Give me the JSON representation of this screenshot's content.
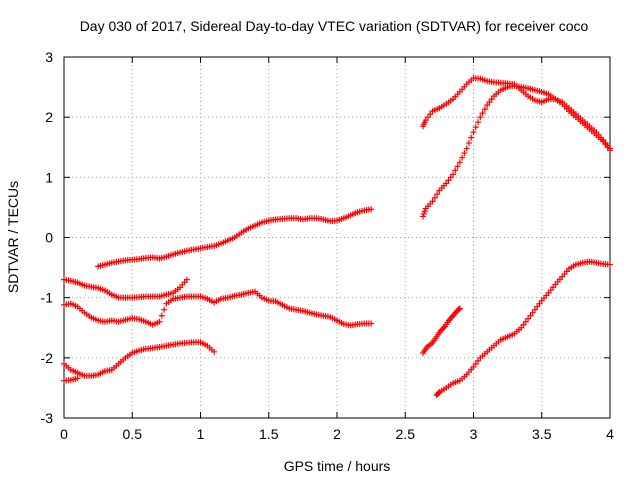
{
  "chart_data": {
    "type": "scatter",
    "title": "Day 030 of 2017, Sidereal Day-to-day VTEC variation (SDTVAR) for receiver coco",
    "xlabel": "GPS time / hours",
    "ylabel": "SDTVAR / TECUs",
    "xlim": [
      0,
      4
    ],
    "ylim": [
      -3,
      3
    ],
    "x_ticks": [
      0,
      0.5,
      1,
      1.5,
      2,
      2.5,
      3,
      3.5,
      4
    ],
    "x_tick_labels": [
      "0",
      "0.5",
      "1",
      "1.5",
      "2",
      "2.5",
      "3",
      "3.5",
      "4"
    ],
    "y_ticks": [
      -3,
      -2,
      -1,
      0,
      1,
      2,
      3
    ],
    "y_tick_labels": [
      "-3",
      "-2",
      "-1",
      "0",
      "1",
      "2",
      "3"
    ],
    "grid": true,
    "marker": "+",
    "series": [
      {
        "color": "#ff0000",
        "x": [
          0.25,
          0.3,
          0.35,
          0.4,
          0.45,
          0.5,
          0.55,
          0.6,
          0.65,
          0.7,
          0.75,
          0.8,
          0.85,
          0.9,
          0.95,
          1.0,
          1.05,
          1.1,
          1.15,
          1.2,
          1.25,
          1.3,
          1.35,
          1.4,
          1.45,
          1.5,
          1.55,
          1.6,
          1.65,
          1.7,
          1.75,
          1.8,
          1.85,
          1.9,
          1.95,
          2.0,
          2.05,
          2.1,
          2.15,
          2.2,
          2.25
        ],
        "y": [
          -0.48,
          -0.45,
          -0.42,
          -0.4,
          -0.38,
          -0.37,
          -0.36,
          -0.34,
          -0.33,
          -0.35,
          -0.32,
          -0.28,
          -0.25,
          -0.22,
          -0.2,
          -0.18,
          -0.16,
          -0.14,
          -0.1,
          -0.05,
          0.0,
          0.08,
          0.15,
          0.2,
          0.25,
          0.28,
          0.3,
          0.31,
          0.32,
          0.32,
          0.3,
          0.32,
          0.32,
          0.3,
          0.27,
          0.28,
          0.32,
          0.37,
          0.42,
          0.45,
          0.47
        ]
      },
      {
        "color": "#ff0000",
        "x": [
          0.0,
          0.05,
          0.1,
          0.15,
          0.2,
          0.25,
          0.3,
          0.35,
          0.4,
          0.45,
          0.5,
          0.55,
          0.6,
          0.65,
          0.7,
          0.75,
          0.8,
          0.85,
          0.9,
          0.95,
          1.0,
          1.05,
          1.1,
          1.15,
          1.2,
          1.25,
          1.3,
          1.35,
          1.4,
          1.45,
          1.5,
          1.55,
          1.6,
          1.65,
          1.7,
          1.75,
          1.8,
          1.85,
          1.9,
          1.95,
          2.0,
          2.05,
          2.1,
          2.15,
          2.2,
          2.25
        ],
        "y": [
          -1.12,
          -1.1,
          -1.15,
          -1.25,
          -1.33,
          -1.38,
          -1.4,
          -1.38,
          -1.4,
          -1.37,
          -1.34,
          -1.36,
          -1.4,
          -1.45,
          -1.4,
          -1.1,
          -1.02,
          -1.0,
          -0.98,
          -0.98,
          -0.98,
          -1.02,
          -1.08,
          -1.02,
          -1.0,
          -0.97,
          -0.95,
          -0.92,
          -0.9,
          -1.0,
          -1.05,
          -1.06,
          -1.12,
          -1.18,
          -1.2,
          -1.22,
          -1.25,
          -1.28,
          -1.3,
          -1.32,
          -1.38,
          -1.44,
          -1.46,
          -1.44,
          -1.43,
          -1.43
        ]
      },
      {
        "color": "#ff0000",
        "x": [
          0.0,
          0.05,
          0.1,
          0.15,
          0.2,
          0.25,
          0.3,
          0.35,
          0.4,
          0.45,
          0.5,
          0.55,
          0.6,
          0.65,
          0.7,
          0.75,
          0.8,
          0.85,
          0.9
        ],
        "y": [
          -0.7,
          -0.72,
          -0.75,
          -0.8,
          -0.82,
          -0.84,
          -0.88,
          -0.95,
          -1.0,
          -1.0,
          -1.0,
          -0.99,
          -0.98,
          -0.98,
          -0.98,
          -0.95,
          -0.92,
          -0.83,
          -0.7
        ]
      },
      {
        "color": "#ff0000",
        "x": [
          0.0,
          0.05,
          0.1,
          0.15,
          0.2,
          0.25,
          0.3,
          0.35,
          0.4,
          0.45,
          0.5,
          0.55,
          0.6,
          0.65,
          0.7,
          0.75,
          0.8,
          0.85,
          0.9,
          0.95,
          1.0,
          1.05,
          1.1
        ],
        "y": [
          -2.1,
          -2.2,
          -2.25,
          -2.3,
          -2.3,
          -2.28,
          -2.22,
          -2.2,
          -2.1,
          -2.0,
          -1.92,
          -1.88,
          -1.85,
          -1.84,
          -1.82,
          -1.8,
          -1.78,
          -1.76,
          -1.75,
          -1.74,
          -1.74,
          -1.8,
          -1.9
        ]
      },
      {
        "color": "#ff0000",
        "x": [
          0.0,
          0.05,
          0.1
        ],
        "y": [
          -2.38,
          -2.37,
          -2.34
        ]
      },
      {
        "color": "#ff0000",
        "x": [
          2.63,
          2.65,
          2.7,
          2.75,
          2.8,
          2.85,
          2.9,
          2.95,
          3.0,
          3.05,
          3.1,
          3.15,
          3.2,
          3.25,
          3.3,
          3.35,
          3.4,
          3.45,
          3.5,
          3.55,
          3.6,
          3.65,
          3.7,
          3.75,
          3.8,
          3.85,
          3.9,
          3.95,
          4.0
        ],
        "y": [
          1.85,
          1.95,
          2.1,
          2.15,
          2.22,
          2.3,
          2.42,
          2.55,
          2.65,
          2.64,
          2.6,
          2.58,
          2.57,
          2.56,
          2.55,
          2.45,
          2.35,
          2.28,
          2.25,
          2.3,
          2.3,
          2.22,
          2.1,
          2.0,
          1.9,
          1.8,
          1.7,
          1.6,
          1.45
        ]
      },
      {
        "color": "#ff0000",
        "x": [
          2.63,
          2.65,
          2.7,
          2.75,
          2.8,
          2.85,
          2.9,
          2.95,
          3.0,
          3.05,
          3.1,
          3.15,
          3.2,
          3.25,
          3.3,
          3.35,
          3.4,
          3.45,
          3.5,
          3.55,
          3.6,
          3.65,
          3.7,
          3.75,
          3.8,
          3.85,
          3.9,
          3.95,
          4.0
        ],
        "y": [
          0.35,
          0.48,
          0.6,
          0.78,
          0.9,
          1.05,
          1.25,
          1.48,
          1.75,
          2.0,
          2.2,
          2.35,
          2.45,
          2.5,
          2.52,
          2.5,
          2.48,
          2.45,
          2.42,
          2.38,
          2.3,
          2.25,
          2.15,
          2.05,
          1.95,
          1.85,
          1.75,
          1.62,
          1.48
        ]
      },
      {
        "color": "#ff0000",
        "x": [
          2.63,
          2.66,
          2.7,
          2.73,
          2.76,
          2.79,
          2.82,
          2.85,
          2.88,
          2.9
        ],
        "y": [
          -1.92,
          -1.82,
          -1.75,
          -1.65,
          -1.55,
          -1.48,
          -1.38,
          -1.3,
          -1.22,
          -1.18
        ]
      },
      {
        "color": "#ff0000",
        "x": [
          2.73,
          2.75,
          2.8,
          2.85,
          2.9,
          2.95,
          3.0,
          3.05,
          3.1,
          3.15,
          3.2,
          3.25,
          3.3,
          3.35,
          3.4,
          3.45,
          3.5,
          3.55,
          3.6,
          3.65,
          3.7,
          3.75,
          3.8,
          3.85,
          3.9,
          3.95,
          4.0
        ],
        "y": [
          -2.62,
          -2.57,
          -2.5,
          -2.42,
          -2.38,
          -2.28,
          -2.15,
          -2.0,
          -1.9,
          -1.8,
          -1.7,
          -1.65,
          -1.6,
          -1.5,
          -1.35,
          -1.2,
          -1.05,
          -0.92,
          -0.78,
          -0.65,
          -0.52,
          -0.45,
          -0.42,
          -0.4,
          -0.42,
          -0.44,
          -0.45
        ]
      }
    ]
  }
}
